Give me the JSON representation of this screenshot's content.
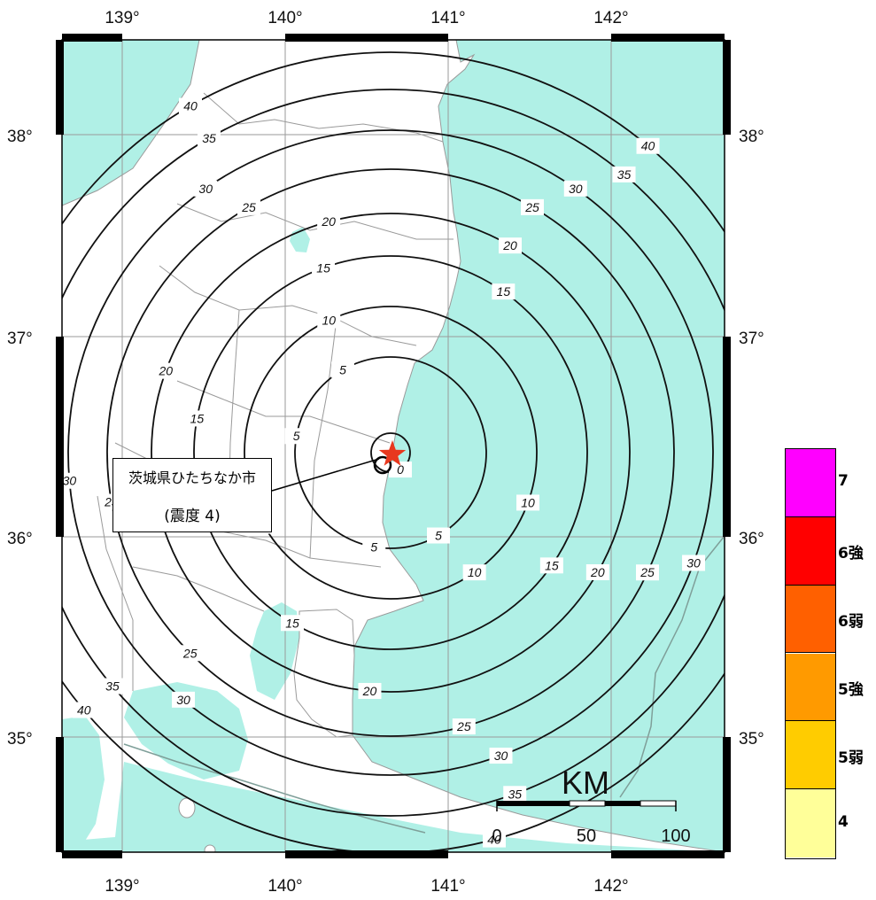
{
  "map": {
    "longitude_labels": [
      "139°",
      "140°",
      "141°",
      "142°"
    ],
    "latitude_labels": [
      "38°",
      "37°",
      "36°",
      "35°"
    ],
    "epicenter": {
      "symbol": "red-star"
    },
    "distance_contours": [
      "0",
      "5",
      "10",
      "15",
      "20",
      "25",
      "30",
      "35",
      "40"
    ],
    "colors": {
      "sea": "#b0f0e6",
      "land": "#ffffff",
      "epicenter": "#e8381e",
      "contour": "#111111"
    }
  },
  "callout": {
    "city": "茨城県ひたちなか市",
    "intensity": "(震度 4)"
  },
  "scale_bar": {
    "unit": "KM",
    "ticks": [
      "0",
      "50",
      "100"
    ]
  },
  "legend": {
    "items": [
      {
        "label": "7",
        "color": "#ff00ff"
      },
      {
        "label": "6強",
        "color": "#ff0000"
      },
      {
        "label": "6弱",
        "color": "#ff6000"
      },
      {
        "label": "5強",
        "color": "#ff9a00"
      },
      {
        "label": "5弱",
        "color": "#ffcc00"
      },
      {
        "label": "4",
        "color": "#ffff99"
      }
    ]
  }
}
